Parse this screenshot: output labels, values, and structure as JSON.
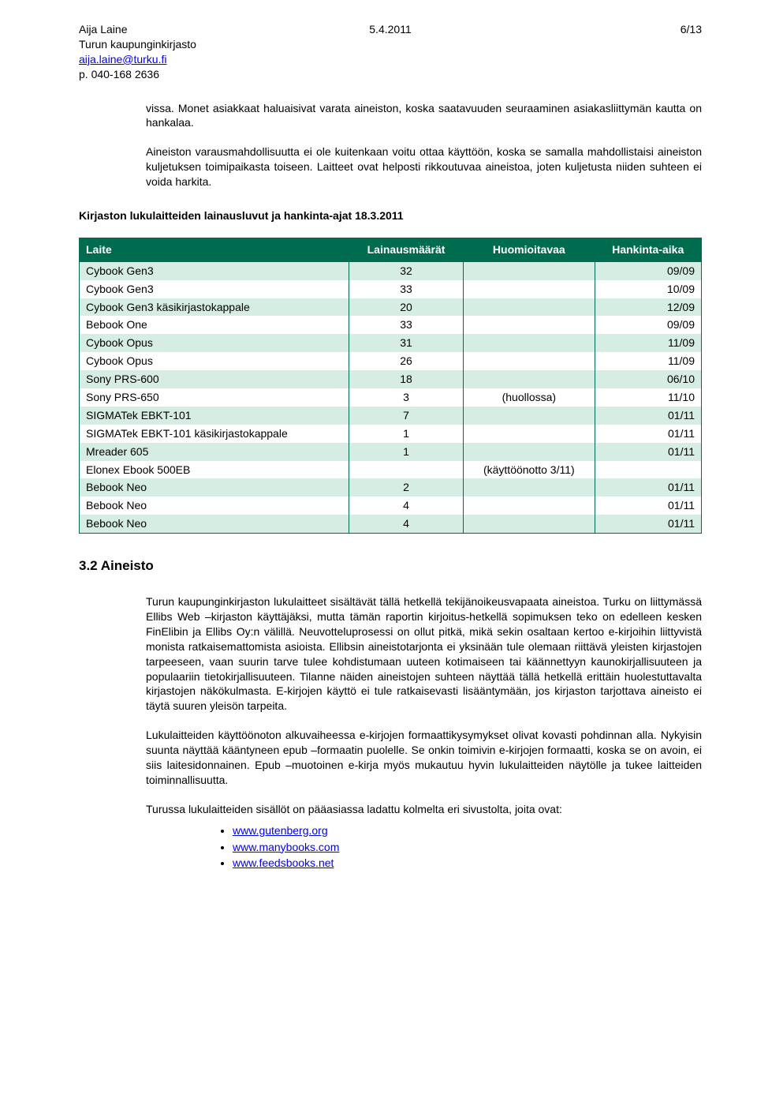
{
  "header": {
    "author": "Aija Laine",
    "org": "Turun kaupunginkirjasto",
    "email": "aija.laine@turku.fi",
    "phone": "p. 040-168 2636",
    "date": "5.4.2011",
    "page": "6/13"
  },
  "intro": {
    "p1": "vissa. Monet asiakkaat haluaisivat varata aineiston, koska saatavuuden seuraaminen asiakasliittymän kautta on hankalaa.",
    "p2": "Aineiston varausmahdollisuutta ei ole kuitenkaan voitu ottaa käyttöön, koska se samalla mahdollistaisi aineiston kuljetuksen toimipaikasta toiseen. Laitteet ovat helposti rikkoutuvaa aineistoa, joten kuljetusta niiden suhteen ei voida harkita."
  },
  "table_section": {
    "title": "Kirjaston lukulaitteiden lainausluvut ja hankinta-ajat 18.3.2011",
    "headers": {
      "device": "Laite",
      "loans": "Lainausmäärät",
      "note": "Huomioitavaa",
      "acq": "Hankinta-aika"
    },
    "rows": [
      {
        "device": "Cybook Gen3",
        "loans": "32",
        "note": "",
        "acq": "09/09"
      },
      {
        "device": "Cybook Gen3",
        "loans": "33",
        "note": "",
        "acq": "10/09"
      },
      {
        "device": "Cybook Gen3 käsikirjastokappale",
        "loans": "20",
        "note": "",
        "acq": "12/09"
      },
      {
        "device": "Bebook One",
        "loans": "33",
        "note": "",
        "acq": "09/09"
      },
      {
        "device": "Cybook Opus",
        "loans": "31",
        "note": "",
        "acq": "11/09"
      },
      {
        "device": "Cybook Opus",
        "loans": "26",
        "note": "",
        "acq": "11/09"
      },
      {
        "device": "Sony PRS-600",
        "loans": "18",
        "note": "",
        "acq": "06/10"
      },
      {
        "device": "Sony PRS-650",
        "loans": "3",
        "note": "(huollossa)",
        "acq": "11/10"
      },
      {
        "device": "SIGMATek EBKT-101",
        "loans": "7",
        "note": "",
        "acq": "01/11"
      },
      {
        "device": "SIGMATek EBKT-101 käsikirjastokappale",
        "loans": "1",
        "note": "",
        "acq": "01/11"
      },
      {
        "device": "Mreader 605",
        "loans": "1",
        "note": "",
        "acq": "01/11"
      },
      {
        "device": "Elonex Ebook 500EB",
        "loans": "",
        "note": "(käyttöönotto 3/11)",
        "acq": ""
      },
      {
        "device": "Bebook Neo",
        "loans": "2",
        "note": "",
        "acq": "01/11"
      },
      {
        "device": "Bebook Neo",
        "loans": "4",
        "note": "",
        "acq": "01/11"
      },
      {
        "device": "Bebook Neo",
        "loans": "4",
        "note": "",
        "acq": "01/11"
      }
    ],
    "colors": {
      "header_bg": "#006c4f",
      "header_fg": "#ffffff",
      "row_even_bg": "#d5ede3",
      "row_odd_bg": "#ffffff",
      "border": "#006c4f"
    }
  },
  "aineisto": {
    "title": "3.2 Aineisto",
    "p1": "Turun kaupunginkirjaston lukulaitteet sisältävät tällä hetkellä tekijänoikeusvapaata aineistoa. Turku on liittymässä Ellibs Web –kirjaston käyttäjäksi, mutta tämän raportin kirjoitus-hetkellä sopimuksen teko on edelleen kesken FinElibin ja Ellibs Oy:n välillä. Neuvotteluprosessi on ollut pitkä, mikä sekin osaltaan kertoo e-kirjoihin liittyvistä monista ratkaisemattomista asioista. Ellibsin aineistotarjonta ei yksinään tule olemaan riittävä yleisten kirjastojen tarpeeseen, vaan suurin tarve tulee kohdistumaan uuteen kotimaiseen tai käännettyyn kaunokirjallisuuteen ja populaariin tietokirjallisuuteen. Tilanne näiden aineistojen suhteen näyttää tällä hetkellä erittäin huolestuttavalta kirjastojen näkökulmasta. E-kirjojen käyttö ei tule ratkaisevasti lisääntymään, jos kirjaston tarjottava aineisto ei täytä suuren yleisön tarpeita.",
    "p2": "Lukulaitteiden käyttöönoton alkuvaiheessa e-kirjojen formaattikysymykset olivat kovasti pohdinnan alla. Nykyisin suunta näyttää kääntyneen epub –formaatin puolelle. Se onkin toimivin e-kirjojen formaatti, koska se on avoin, ei siis laitesidonnainen. Epub –muotoinen e-kirja myös mukautuu hyvin lukulaitteiden näytölle ja tukee laitteiden toiminnallisuutta.",
    "p3": "Turussa lukulaitteiden sisällöt on pääasiassa ladattu kolmelta eri sivustolta, joita ovat:",
    "links": [
      "www.gutenberg.org",
      "www.manybooks.com",
      "www.feedsbooks.net"
    ]
  }
}
